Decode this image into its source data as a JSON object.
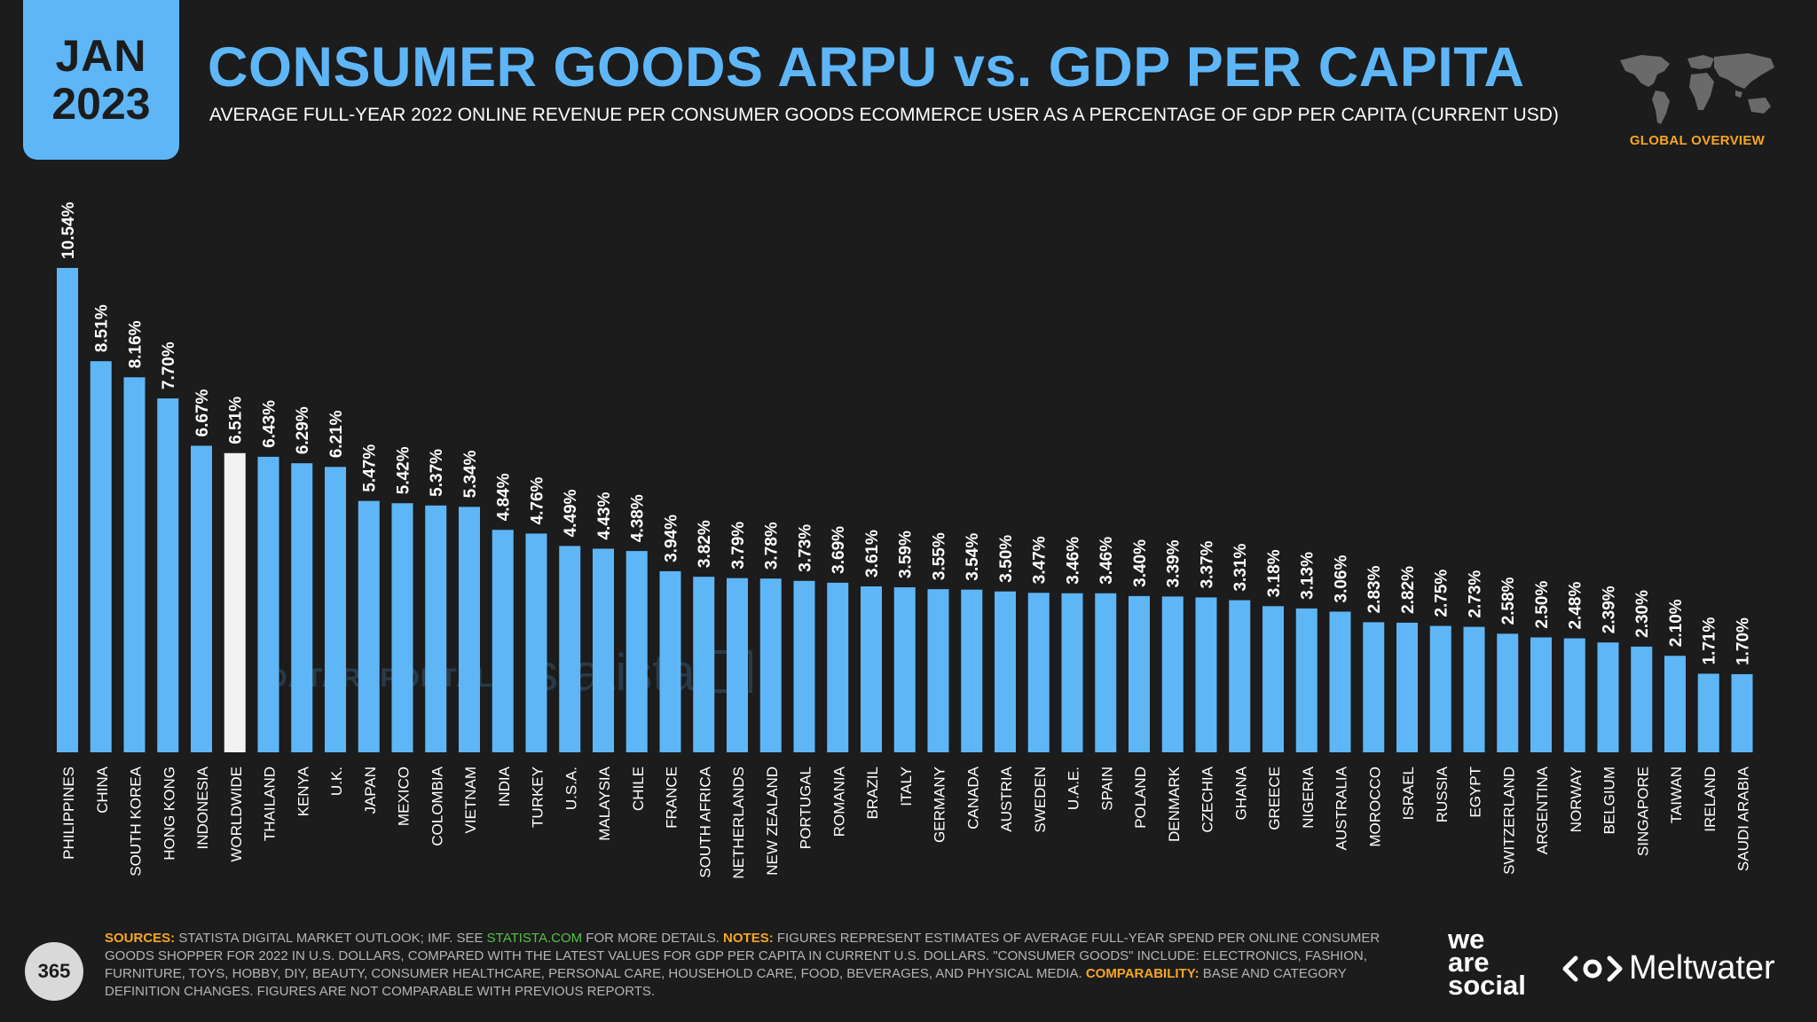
{
  "header": {
    "month": "JAN",
    "year": "2023",
    "title": "CONSUMER GOODS ARPU vs. GDP PER CAPITA",
    "subtitle": "AVERAGE FULL-YEAR 2022 ONLINE REVENUE PER CONSUMER GOODS ECOMMERCE USER AS A PERCENTAGE OF GDP PER CAPITA (CURRENT USD)",
    "region": "GLOBAL OVERVIEW"
  },
  "watermarks": {
    "datareportal": "DATAREPORTAL",
    "statista": "statista"
  },
  "footer": {
    "page_number": "365",
    "sources_label": "SOURCES:",
    "sources_text": " STATISTA DIGITAL MARKET OUTLOOK; IMF. SEE ",
    "sources_link": "STATISTA.COM",
    "sources_after": " FOR MORE DETAILS. ",
    "notes_label": "NOTES:",
    "notes_text": " FIGURES REPRESENT ESTIMATES OF AVERAGE FULL-YEAR SPEND PER ONLINE CONSUMER GOODS SHOPPER FOR 2022 IN U.S. DOLLARS, COMPARED WITH THE LATEST VALUES FOR GDP PER CAPITA IN CURRENT U.S. DOLLARS. \"CONSUMER GOODS\" INCLUDE: ELECTRONICS, FASHION, FURNITURE, TOYS, HOBBY, DIY, BEAUTY, CONSUMER HEALTHCARE, PERSONAL CARE, HOUSEHOLD CARE, FOOD, BEVERAGES, AND PHYSICAL MEDIA. ",
    "comparability_label": "COMPARABILITY:",
    "comparability_text": " BASE AND CATEGORY DEFINITION CHANGES. FIGURES ARE NOT COMPARABLE WITH PREVIOUS REPORTS."
  },
  "brands": {
    "was_line1": "we",
    "was_line2": "are",
    "was_line3": "social",
    "meltwater": "Meltwater"
  },
  "colors": {
    "bar": "#5eb6f7",
    "highlight_bar": "#f2f2f2",
    "background": "#1c1c1c",
    "accent": "#f6a623"
  },
  "chart_data": {
    "type": "bar",
    "title": "CONSUMER GOODS ARPU vs. GDP PER CAPITA",
    "xlabel": "",
    "ylabel": "",
    "ylim": [
      0,
      10.54
    ],
    "highlight": "WORLDWIDE",
    "categories": [
      "PHILIPPINES",
      "CHINA",
      "SOUTH KOREA",
      "HONG KONG",
      "INDONESIA",
      "WORLDWIDE",
      "THAILAND",
      "KENYA",
      "U.K.",
      "JAPAN",
      "MEXICO",
      "COLOMBIA",
      "VIETNAM",
      "INDIA",
      "TURKEY",
      "U.S.A.",
      "MALAYSIA",
      "CHILE",
      "FRANCE",
      "SOUTH AFRICA",
      "NETHERLANDS",
      "NEW ZEALAND",
      "PORTUGAL",
      "ROMANIA",
      "BRAZIL",
      "ITALY",
      "GERMANY",
      "CANADA",
      "AUSTRIA",
      "SWEDEN",
      "U.A.E.",
      "SPAIN",
      "POLAND",
      "DENMARK",
      "CZECHIA",
      "GHANA",
      "GREECE",
      "NIGERIA",
      "AUSTRALIA",
      "MOROCCO",
      "ISRAEL",
      "RUSSIA",
      "EGYPT",
      "SWITZERLAND",
      "ARGENTINA",
      "NORWAY",
      "BELGIUM",
      "SINGAPORE",
      "TAIWAN",
      "IRELAND",
      "SAUDI ARABIA"
    ],
    "values": [
      10.54,
      8.51,
      8.16,
      7.7,
      6.67,
      6.51,
      6.43,
      6.29,
      6.21,
      5.47,
      5.42,
      5.37,
      5.34,
      4.84,
      4.76,
      4.49,
      4.43,
      4.38,
      3.94,
      3.82,
      3.79,
      3.78,
      3.73,
      3.69,
      3.61,
      3.59,
      3.55,
      3.54,
      3.5,
      3.47,
      3.46,
      3.46,
      3.4,
      3.39,
      3.37,
      3.31,
      3.18,
      3.13,
      3.06,
      2.83,
      2.82,
      2.75,
      2.73,
      2.58,
      2.5,
      2.48,
      2.39,
      2.3,
      2.1,
      1.71,
      1.7
    ],
    "labels": [
      "10.54%",
      "8.51%",
      "8.16%",
      "7.70%",
      "6.67%",
      "6.51%",
      "6.43%",
      "6.29%",
      "6.21%",
      "5.47%",
      "5.42%",
      "5.37%",
      "5.34%",
      "4.84%",
      "4.76%",
      "4.49%",
      "4.43%",
      "4.38%",
      "3.94%",
      "3.82%",
      "3.79%",
      "3.78%",
      "3.73%",
      "3.69%",
      "3.61%",
      "3.59%",
      "3.55%",
      "3.54%",
      "3.50%",
      "3.47%",
      "3.46%",
      "3.46%",
      "3.40%",
      "3.39%",
      "3.37%",
      "3.31%",
      "3.18%",
      "3.13%",
      "3.06%",
      "2.83%",
      "2.82%",
      "2.75%",
      "2.73%",
      "2.58%",
      "2.50%",
      "2.48%",
      "2.39%",
      "2.30%",
      "2.10%",
      "1.71%",
      "1.70%"
    ]
  }
}
